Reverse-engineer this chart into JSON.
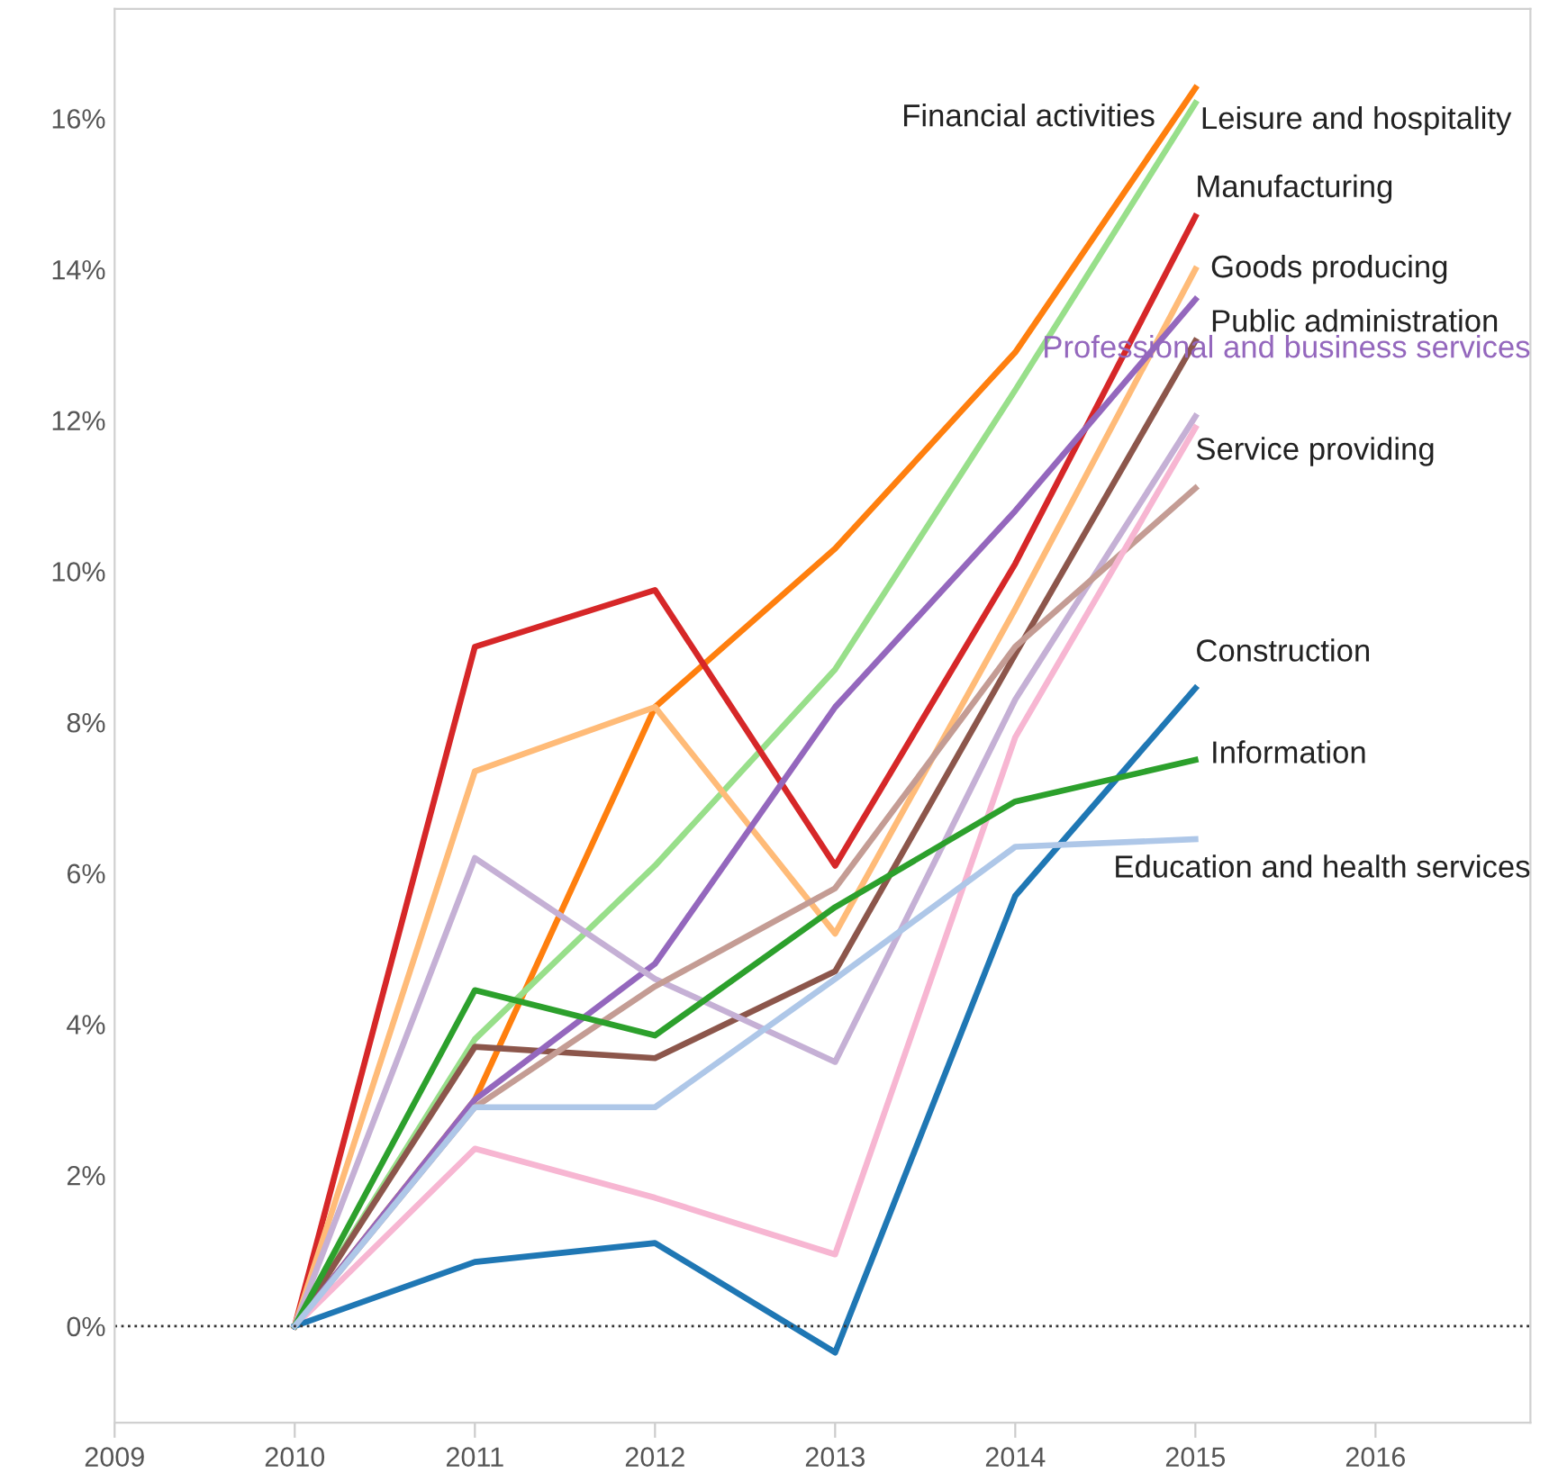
{
  "chart_data": {
    "type": "line",
    "x": [
      2010,
      2011,
      2012,
      2013,
      2014,
      2015
    ],
    "series": [
      {
        "name": "Financial activities",
        "color": "#ff7f0e",
        "values": [
          0,
          3.0,
          8.2,
          10.3,
          12.9,
          16.4
        ]
      },
      {
        "name": "Leisure and hospitality",
        "color": "#98df8a",
        "values": [
          0,
          3.8,
          6.1,
          8.7,
          12.4,
          16.2
        ]
      },
      {
        "name": "Manufacturing",
        "color": "#d62728",
        "values": [
          0,
          9.0,
          9.75,
          6.1,
          10.1,
          14.7
        ]
      },
      {
        "name": "Goods producing",
        "color": "#ffbb78",
        "values": [
          0,
          7.35,
          8.2,
          5.2,
          9.5,
          14.0
        ]
      },
      {
        "name": "Public administration",
        "color": "#8c564b",
        "values": [
          0,
          3.7,
          3.55,
          4.7,
          8.9,
          13.05
        ]
      },
      {
        "name": "Professional and business services",
        "color": "#9467bd",
        "values": [
          0,
          3.0,
          4.8,
          8.2,
          10.8,
          13.6
        ]
      },
      {
        "name": "Service providing",
        "color": "#c5b0d5",
        "values": [
          0,
          6.2,
          4.6,
          3.5,
          8.3,
          12.05
        ]
      },
      {
        "color": "#c49c94",
        "values": [
          0,
          2.9,
          4.5,
          5.8,
          9.0,
          11.1
        ]
      },
      {
        "color": "#f7b6d2",
        "values": [
          0,
          2.35,
          1.7,
          0.95,
          7.8,
          11.9
        ]
      },
      {
        "name": "Construction",
        "color": "#1f77b4",
        "values": [
          0,
          0.85,
          1.1,
          -0.35,
          5.7,
          8.45
        ]
      },
      {
        "name": "Information",
        "color": "#2ca02c",
        "values": [
          0,
          4.45,
          3.85,
          5.55,
          6.95,
          7.5
        ]
      },
      {
        "name": "Education and health services",
        "color": "#aec7e8",
        "values": [
          0,
          2.9,
          2.9,
          4.6,
          6.35,
          6.45
        ]
      }
    ],
    "xlim": [
      2009,
      2016.86
    ],
    "xticks": [
      2009,
      2010,
      2011,
      2012,
      2013,
      2014,
      2015,
      2016
    ],
    "ylim": [
      -1.28,
      17.45
    ],
    "yticks": [
      {
        "value": 0,
        "label": "0%"
      },
      {
        "value": 2,
        "label": "2%"
      },
      {
        "value": 4,
        "label": "4%"
      },
      {
        "value": 6,
        "label": "6%"
      },
      {
        "value": 8,
        "label": "8%"
      },
      {
        "value": 10,
        "label": "10%"
      },
      {
        "value": 12,
        "label": "12%"
      },
      {
        "value": 14,
        "label": "14%"
      },
      {
        "value": 16,
        "label": "16%"
      }
    ],
    "ref_lines": [
      {
        "axis": "y",
        "value": 0,
        "color": "#333333",
        "line_style": "dotted"
      }
    ],
    "grid": false,
    "legend": false,
    "marker": "none",
    "line_style": "solid"
  }
}
